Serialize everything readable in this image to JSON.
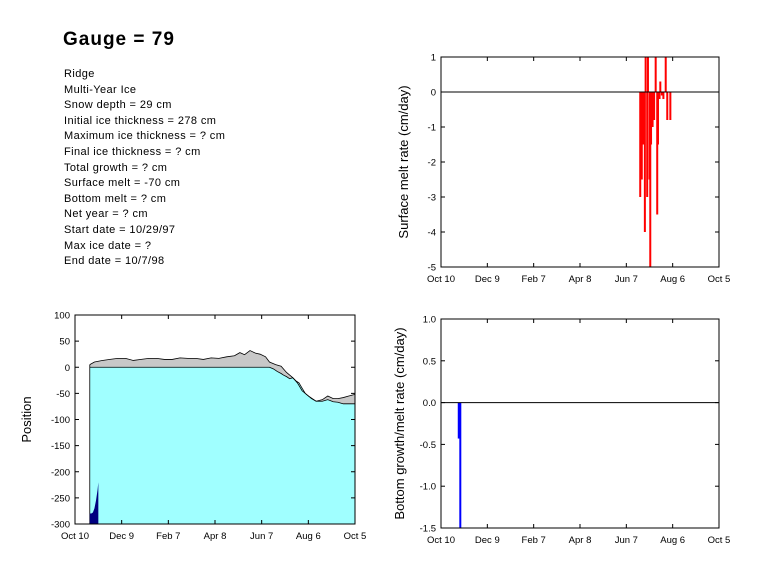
{
  "title": "Gauge =  79",
  "info_lines": [
    "Ridge",
    "Multi-Year Ice",
    "Snow depth = 29 cm",
    "Initial ice thickness = 278 cm",
    "Maximum ice thickness = ? cm",
    "Final ice thickness = ? cm",
    "Total growth =  ? cm",
    "Surface melt = -70 cm",
    "Bottom melt =    ? cm",
    "Net year =      ? cm",
    "Start date = 10/29/97",
    "Max ice date = ?",
    "End date = 10/7/98"
  ],
  "colors": {
    "surface_bars": "#ff0000",
    "bottom_bars": "#0000ff",
    "ice": "#a0ffff",
    "snow": "#c8c8c8",
    "initial_bar": "#000080"
  },
  "chart_data": [
    {
      "id": "surface",
      "type": "bar",
      "ylabel": "Surface melt rate (cm/day)",
      "xlabel": "",
      "xlim": [
        0,
        360
      ],
      "ylim": [
        -5,
        1
      ],
      "xticks": [
        {
          "label": "Oct 10",
          "day": 0
        },
        {
          "label": "Dec 9",
          "day": 60
        },
        {
          "label": "Feb 7",
          "day": 120
        },
        {
          "label": "Apr 8",
          "day": 180
        },
        {
          "label": "Jun 7",
          "day": 240
        },
        {
          "label": "Aug 6",
          "day": 300
        },
        {
          "label": "Oct 5",
          "day": 360
        }
      ],
      "yticks": [
        1,
        0,
        -1,
        -2,
        -3,
        -4,
        -5
      ],
      "ytick_labels": [
        "1",
        "0",
        "-1",
        "-2",
        "-3",
        "-4",
        "-5"
      ],
      "bars": [
        {
          "day": 258,
          "value": -3.0
        },
        {
          "day": 260,
          "value": -2.5
        },
        {
          "day": 262,
          "value": -1.5
        },
        {
          "day": 264,
          "value": -4.0
        },
        {
          "day": 265,
          "value": 1.0
        },
        {
          "day": 267,
          "value": -3.0
        },
        {
          "day": 268,
          "value": 1.0
        },
        {
          "day": 270,
          "value": -2.5
        },
        {
          "day": 271,
          "value": -5.0
        },
        {
          "day": 272,
          "value": -1.5
        },
        {
          "day": 274,
          "value": -1.0
        },
        {
          "day": 276,
          "value": -0.8
        },
        {
          "day": 278,
          "value": 1.0
        },
        {
          "day": 280,
          "value": -3.5
        },
        {
          "day": 281,
          "value": -1.5
        },
        {
          "day": 283,
          "value": -0.2
        },
        {
          "day": 284,
          "value": 0.3
        },
        {
          "day": 286,
          "value": -0.1
        },
        {
          "day": 288,
          "value": -0.2
        },
        {
          "day": 291,
          "value": 1.0
        },
        {
          "day": 293,
          "value": -0.8
        },
        {
          "day": 297,
          "value": -0.8
        }
      ]
    },
    {
      "id": "bottom",
      "type": "bar",
      "ylabel": "Bottom growth/melt rate (cm/day)",
      "xlabel": "",
      "xlim": [
        0,
        360
      ],
      "ylim": [
        -1.5,
        1.0
      ],
      "xticks": [
        {
          "label": "Oct 10",
          "day": 0
        },
        {
          "label": "Dec 9",
          "day": 60
        },
        {
          "label": "Feb 7",
          "day": 120
        },
        {
          "label": "Apr 8",
          "day": 180
        },
        {
          "label": "Jun 7",
          "day": 240
        },
        {
          "label": "Aug 6",
          "day": 300
        },
        {
          "label": "Oct 5",
          "day": 360
        }
      ],
      "yticks": [
        1.0,
        0.5,
        0.0,
        -0.5,
        -1.0,
        -1.5
      ],
      "ytick_labels": [
        "1.0",
        "0.5",
        "0.0",
        "-0.5",
        "-1.0",
        "-1.5"
      ],
      "bars": [
        {
          "day": 23,
          "value": -0.43
        },
        {
          "day": 25,
          "value": -1.5
        }
      ]
    },
    {
      "id": "position",
      "type": "area",
      "ylabel": "Position",
      "xlabel": "",
      "xlim": [
        0,
        360
      ],
      "ylim": [
        -300,
        100
      ],
      "xticks": [
        {
          "label": "Oct 10",
          "day": 0
        },
        {
          "label": "Dec 9",
          "day": 60
        },
        {
          "label": "Feb 7",
          "day": 120
        },
        {
          "label": "Apr 8",
          "day": 180
        },
        {
          "label": "Jun 7",
          "day": 240
        },
        {
          "label": "Aug 6",
          "day": 300
        },
        {
          "label": "Oct 5",
          "day": 360
        }
      ],
      "yticks": [
        100,
        50,
        0,
        -50,
        -100,
        -150,
        -200,
        -250,
        -300
      ],
      "ytick_labels": [
        "100",
        "50",
        "0",
        "-50",
        "-100",
        "-150",
        "-200",
        "-250",
        "-300"
      ],
      "series": [
        {
          "name": "",
          "x": [
            19,
            25,
            35,
            45,
            55,
            65,
            75,
            85,
            95,
            105,
            115,
            125,
            135,
            145,
            155,
            165,
            175,
            185,
            195,
            205,
            212,
            218,
            225,
            232,
            238,
            245,
            250,
            258,
            265,
            272,
            280,
            286,
            292,
            300,
            305,
            310,
            318,
            325,
            332,
            338,
            345,
            352,
            360
          ],
          "y": [
            5,
            10,
            13,
            15,
            17,
            17,
            13,
            15,
            17,
            17,
            15,
            15,
            18,
            17,
            17,
            15,
            18,
            17,
            20,
            22,
            28,
            24,
            32,
            27,
            25,
            20,
            10,
            5,
            2,
            -10,
            -20,
            -30,
            -45,
            -55,
            -60,
            -65,
            -62,
            -55,
            -60,
            -60,
            -58,
            -55,
            -52
          ]
        },
        {
          "name": "",
          "x": [
            19,
            250,
            255,
            260,
            265,
            268,
            272,
            276,
            280,
            284,
            288,
            292,
            296,
            300,
            304,
            310,
            318,
            325,
            332,
            338,
            345,
            352,
            360
          ],
          "y": [
            0,
            0,
            -3,
            -8,
            -12,
            -15,
            -18,
            -22,
            -20,
            -26,
            -30,
            -40,
            -50,
            -55,
            -60,
            -65,
            -65,
            -62,
            -66,
            -67,
            -70,
            -70,
            -70
          ]
        },
        {
          "name": "",
          "x": [
            19,
            21,
            23,
            25,
            27,
            29,
            30
          ],
          "y": [
            -280,
            -280,
            -278,
            -270,
            -255,
            -235,
            -220
          ]
        }
      ]
    }
  ]
}
